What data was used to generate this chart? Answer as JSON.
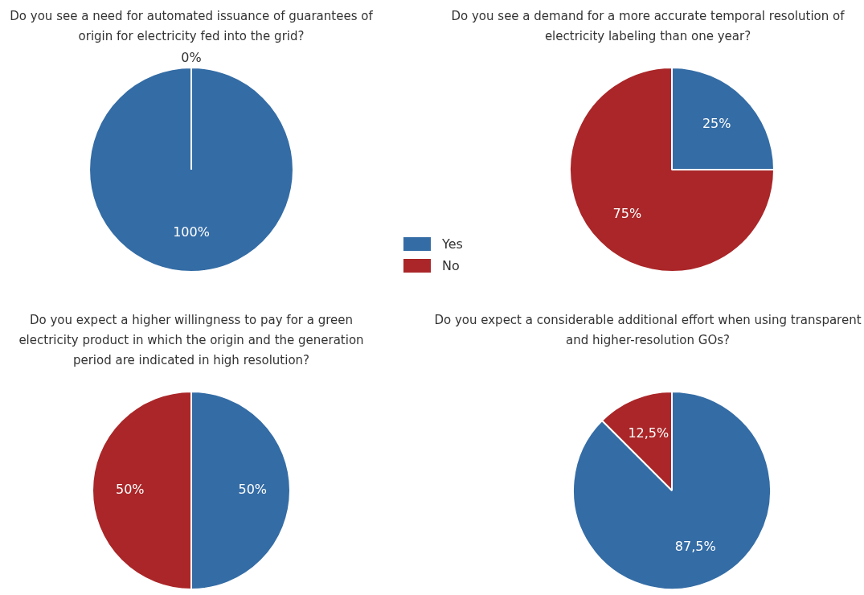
{
  "chart_data": [
    {
      "type": "pie",
      "title": "Do you see a need for automated issuance of guarantees of origin for electricity fed into the grid?",
      "categories": [
        "Yes",
        "No"
      ],
      "values": [
        100,
        0
      ],
      "colors": [
        "#346ca5",
        "#aa2628"
      ],
      "value_labels": [
        "100%",
        "0%"
      ],
      "legend": "right"
    },
    {
      "type": "pie",
      "title": "Do you see a demand for a more accurate temporal resolution of electricity labeling than one year?",
      "categories": [
        null,
        null
      ],
      "values": [
        25,
        75
      ],
      "colors": [
        "#346ca5",
        "#aa2628"
      ],
      "value_labels": [
        "25%",
        "75%"
      ]
    },
    {
      "type": "pie",
      "title": "Do you expect a higher willingness to pay  for a green electricity product in which the origin and the generation period are indicated in high resolution?",
      "categories": [
        null,
        null
      ],
      "values": [
        50,
        50
      ],
      "colors": [
        "#346ca5",
        "#aa2628"
      ],
      "value_labels": [
        "50%",
        "50%"
      ]
    },
    {
      "type": "pie",
      "title": "Do you expect a considerable additional effort when using transparent and higher-resolution GOs?",
      "categories": [
        null,
        null
      ],
      "values": [
        87.5,
        12.5
      ],
      "colors": [
        "#346ca5",
        "#aa2628"
      ],
      "value_labels": [
        "87,5%",
        "12,5%"
      ]
    }
  ]
}
